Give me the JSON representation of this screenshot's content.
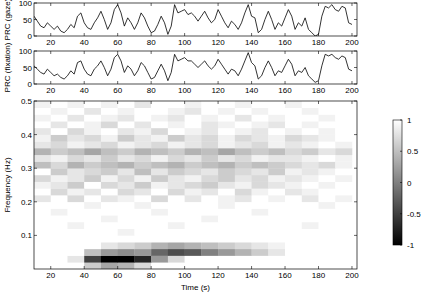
{
  "chart_data": [
    {
      "type": "line",
      "ylabel": "PRC (gaze)",
      "xlim": [
        10,
        203
      ],
      "ylim": [
        0,
        100
      ],
      "xticks": [
        20,
        40,
        60,
        80,
        100,
        120,
        140,
        160,
        180,
        200
      ],
      "yticks": [
        0,
        50,
        100
      ],
      "x": [
        10,
        12,
        14,
        16,
        18,
        20,
        22,
        24,
        26,
        28,
        30,
        32,
        34,
        36,
        38,
        40,
        42,
        44,
        46,
        48,
        50,
        52,
        54,
        56,
        58,
        60,
        62,
        64,
        66,
        68,
        70,
        72,
        74,
        76,
        78,
        80,
        82,
        84,
        86,
        88,
        90,
        92,
        94,
        96,
        98,
        100,
        102,
        104,
        106,
        108,
        110,
        112,
        114,
        116,
        118,
        120,
        122,
        124,
        126,
        128,
        130,
        132,
        134,
        136,
        138,
        140,
        142,
        144,
        146,
        148,
        150,
        152,
        154,
        156,
        158,
        160,
        162,
        164,
        166,
        168,
        170,
        172,
        174,
        176,
        178,
        180,
        182,
        184,
        186,
        188,
        190,
        192,
        194,
        196,
        198,
        200
      ],
      "series": [
        {
          "color": "#000000",
          "values": [
            60,
            45,
            30,
            25,
            40,
            30,
            20,
            30,
            15,
            10,
            20,
            35,
            25,
            60,
            70,
            40,
            25,
            20,
            40,
            55,
            75,
            50,
            20,
            40,
            80,
            95,
            70,
            30,
            55,
            40,
            20,
            40,
            70,
            55,
            30,
            10,
            15,
            35,
            60,
            40,
            5,
            30,
            95,
            70,
            75,
            80,
            65,
            70,
            60,
            45,
            60,
            75,
            55,
            40,
            50,
            80,
            60,
            40,
            25,
            45,
            35,
            20,
            40,
            70,
            95,
            60,
            55,
            10,
            20,
            50,
            75,
            50,
            20,
            40,
            30,
            55,
            80,
            60,
            20,
            40,
            30,
            55,
            20,
            10,
            0,
            5,
            60,
            90,
            85,
            95,
            80,
            75,
            90,
            85,
            40,
            35
          ]
        }
      ]
    },
    {
      "type": "line",
      "ylabel": "PRC (fixation)",
      "xlim": [
        10,
        203
      ],
      "ylim": [
        0,
        100
      ],
      "xticks": [
        20,
        40,
        60,
        80,
        100,
        120,
        140,
        160,
        180,
        200
      ],
      "yticks": [
        0,
        50,
        100
      ],
      "x": [
        10,
        12,
        14,
        16,
        18,
        20,
        22,
        24,
        26,
        28,
        30,
        32,
        34,
        36,
        38,
        40,
        42,
        44,
        46,
        48,
        50,
        52,
        54,
        56,
        58,
        60,
        62,
        64,
        66,
        68,
        70,
        72,
        74,
        76,
        78,
        80,
        82,
        84,
        86,
        88,
        90,
        92,
        94,
        96,
        98,
        100,
        102,
        104,
        106,
        108,
        110,
        112,
        114,
        116,
        118,
        120,
        122,
        124,
        126,
        128,
        130,
        132,
        134,
        136,
        138,
        140,
        142,
        144,
        146,
        148,
        150,
        152,
        154,
        156,
        158,
        160,
        162,
        164,
        166,
        168,
        170,
        172,
        174,
        176,
        178,
        180,
        182,
        184,
        186,
        188,
        190,
        192,
        194,
        196,
        198,
        200
      ],
      "series": [
        {
          "color": "#000000",
          "values": [
            55,
            45,
            35,
            30,
            45,
            35,
            25,
            30,
            20,
            15,
            25,
            40,
            30,
            65,
            70,
            45,
            30,
            25,
            45,
            55,
            70,
            50,
            25,
            45,
            80,
            90,
            70,
            35,
            55,
            45,
            25,
            40,
            65,
            55,
            35,
            15,
            20,
            40,
            60,
            40,
            10,
            35,
            90,
            70,
            75,
            80,
            70,
            70,
            60,
            50,
            60,
            70,
            55,
            45,
            55,
            75,
            60,
            45,
            30,
            45,
            40,
            25,
            45,
            70,
            95,
            65,
            55,
            15,
            25,
            50,
            70,
            50,
            25,
            40,
            35,
            55,
            75,
            60,
            25,
            40,
            35,
            50,
            25,
            15,
            5,
            10,
            55,
            90,
            85,
            90,
            80,
            75,
            85,
            80,
            45,
            40
          ]
        }
      ]
    },
    {
      "type": "heatmap",
      "xlabel": "Time (s)",
      "ylabel": "Frequency (Hz)",
      "xlim": [
        10,
        203
      ],
      "ylim": [
        0,
        0.5
      ],
      "xticks": [
        20,
        40,
        60,
        80,
        100,
        120,
        140,
        160,
        180,
        200
      ],
      "yticks": [
        0.1,
        0.2,
        0.3,
        0.4,
        0.5
      ],
      "x_edges": [
        10,
        20,
        30,
        40,
        50,
        60,
        70,
        80,
        90,
        100,
        110,
        120,
        130,
        140,
        150,
        160,
        170,
        180,
        190,
        200
      ],
      "y_edges": [
        0,
        0.02,
        0.04,
        0.06,
        0.08,
        0.1,
        0.12,
        0.14,
        0.16,
        0.18,
        0.2,
        0.22,
        0.24,
        0.26,
        0.28,
        0.3,
        0.32,
        0.34,
        0.36,
        0.38,
        0.4,
        0.42,
        0.44,
        0.46,
        0.48,
        0.5
      ],
      "cells": [
        [
          1,
          1,
          1,
          0.6,
          0.3,
          0.4,
          0.7,
          1,
          1,
          1,
          1,
          1,
          1,
          1,
          1,
          1,
          1,
          1,
          1
        ],
        [
          1,
          1,
          0.8,
          -0.5,
          -1,
          -1,
          -0.7,
          0.2,
          0.7,
          1,
          1,
          1,
          1,
          1,
          1,
          1,
          1,
          1,
          1
        ],
        [
          1,
          1,
          1,
          0.5,
          0.2,
          0.1,
          0.2,
          -0.2,
          -0.4,
          -0.3,
          0,
          0.2,
          0.4,
          0.6,
          0.8,
          1,
          1,
          1,
          1
        ],
        [
          1,
          1,
          1,
          1,
          0.8,
          0.7,
          0.6,
          0.4,
          0.3,
          0.4,
          0.5,
          0.6,
          0.7,
          0.8,
          0.9,
          1,
          1,
          1,
          1
        ],
        [
          1,
          1,
          1,
          1,
          1,
          1,
          1,
          1,
          1,
          1,
          1,
          1,
          1,
          1,
          1,
          1,
          1,
          1,
          1
        ],
        [
          1,
          1,
          1,
          1,
          1,
          0.9,
          1,
          1,
          1,
          1,
          1,
          1,
          1,
          1,
          1,
          1,
          1,
          1,
          1
        ],
        [
          1,
          1,
          0.9,
          1,
          1,
          1,
          1,
          1,
          0.9,
          1,
          1,
          1,
          1,
          1,
          1,
          1,
          0.9,
          1,
          1
        ],
        [
          1,
          1,
          1,
          1,
          0.9,
          1,
          1,
          1,
          1,
          1,
          0.9,
          1,
          1,
          1,
          1,
          1,
          1,
          1,
          1
        ],
        [
          1,
          0.9,
          1,
          1,
          1,
          1,
          1,
          0.9,
          1,
          1,
          1,
          1,
          1,
          0.9,
          1,
          1,
          1,
          1,
          1
        ],
        [
          1,
          1,
          1,
          0.9,
          1,
          1,
          0.9,
          1,
          1,
          1,
          1,
          0.9,
          1,
          1,
          1,
          1,
          1,
          0.9,
          1
        ],
        [
          0.8,
          1,
          0.7,
          1,
          0.8,
          0.9,
          1,
          0.7,
          1,
          0.8,
          1,
          0.9,
          0.8,
          1,
          0.9,
          1,
          0.8,
          1,
          0.9
        ],
        [
          1,
          0.7,
          0.9,
          0.8,
          1,
          0.7,
          0.8,
          1,
          0.7,
          0.9,
          0.8,
          1,
          0.7,
          0.9,
          1,
          0.8,
          0.9,
          1,
          1
        ],
        [
          0.9,
          0.8,
          0.6,
          1,
          0.7,
          0.8,
          0.6,
          0.9,
          0.8,
          0.7,
          0.6,
          0.8,
          0.9,
          0.7,
          0.8,
          0.9,
          1,
          0.9,
          1
        ],
        [
          0.7,
          0.9,
          0.8,
          0.6,
          0.9,
          0.7,
          0.9,
          0.6,
          0.8,
          0.9,
          0.7,
          0.6,
          0.8,
          0.7,
          0.9,
          0.8,
          0.9,
          1,
          0.9
        ],
        [
          1,
          0.6,
          0.8,
          0.7,
          0.6,
          0.8,
          0.5,
          0.8,
          0.6,
          0.7,
          0.8,
          0.6,
          0.7,
          0.8,
          0.6,
          0.9,
          0.8,
          0.9,
          1
        ],
        [
          0.5,
          0.7,
          0.4,
          0.6,
          0.5,
          0.4,
          0.6,
          0.5,
          0.4,
          0.6,
          0.5,
          0.4,
          0.6,
          0.5,
          0.6,
          0.7,
          0.8,
          0.7,
          0.9
        ],
        [
          0.8,
          0.9,
          0.7,
          0.8,
          0.6,
          0.8,
          0.7,
          0.9,
          0.7,
          0.8,
          0.6,
          0.8,
          0.7,
          0.9,
          0.8,
          0.8,
          0.9,
          1,
          0.9
        ],
        [
          0.4,
          0.6,
          0.5,
          0.3,
          0.5,
          0.6,
          0.4,
          0.5,
          0.6,
          0.4,
          0.5,
          0.3,
          0.5,
          0.6,
          0.5,
          0.7,
          0.6,
          0.8,
          0.7
        ],
        [
          0.8,
          0.7,
          0.9,
          0.8,
          0.7,
          0.9,
          0.8,
          0.7,
          0.9,
          0.8,
          0.7,
          0.9,
          0.8,
          0.7,
          0.9,
          0.8,
          0.9,
          1,
          0.9
        ],
        [
          0.9,
          0.6,
          0.8,
          0.7,
          0.9,
          0.6,
          0.8,
          0.9,
          0.6,
          0.8,
          0.7,
          0.9,
          0.7,
          0.8,
          0.9,
          0.7,
          0.8,
          0.9,
          1
        ],
        [
          0.8,
          1,
          0.7,
          0.9,
          1,
          0.8,
          0.9,
          0.7,
          1,
          0.9,
          0.8,
          1,
          0.9,
          0.8,
          1,
          0.9,
          1,
          0.9,
          1
        ],
        [
          1,
          0.8,
          1,
          0.9,
          0.7,
          1,
          0.8,
          1,
          0.9,
          1,
          0.8,
          0.9,
          1,
          0.9,
          0.8,
          1,
          0.9,
          1,
          1
        ],
        [
          0.9,
          1,
          0.8,
          1,
          0.9,
          0.8,
          1,
          0.9,
          0.8,
          1,
          0.9,
          1,
          0.8,
          1,
          0.9,
          1,
          1,
          0.9,
          1
        ],
        [
          1,
          0.9,
          1,
          0.8,
          1,
          0.9,
          1,
          1,
          0.9,
          0.8,
          1,
          0.9,
          1,
          0.9,
          1,
          1,
          0.9,
          1,
          1
        ],
        [
          0.9,
          1,
          0.9,
          1,
          0.9,
          1,
          0.8,
          1,
          1,
          0.9,
          1,
          1,
          0.9,
          1,
          1,
          0.9,
          1,
          1,
          1
        ]
      ],
      "colorbar": {
        "range": [
          -1,
          1
        ],
        "ticks": [
          -1,
          -0.5,
          0,
          0.5,
          1
        ]
      }
    }
  ]
}
